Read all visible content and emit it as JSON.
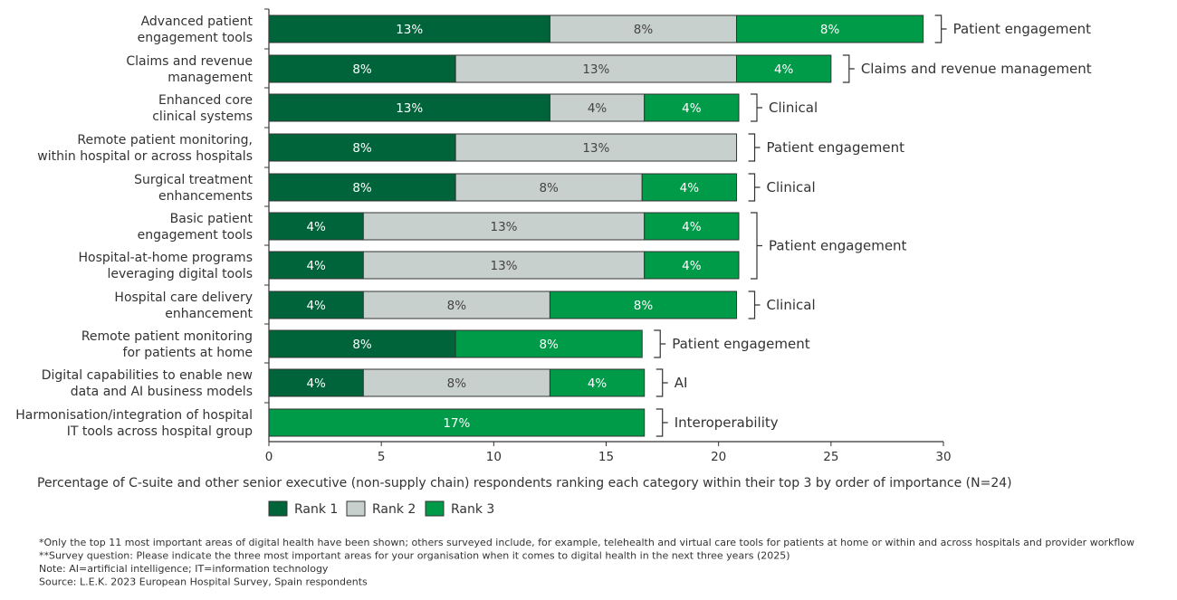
{
  "chart_data": {
    "type": "bar",
    "orientation": "horizontal",
    "stacked": true,
    "categories": [
      [
        "Advanced patient",
        "engagement tools"
      ],
      [
        "Claims and revenue",
        "management"
      ],
      [
        "Enhanced core",
        "clinical systems"
      ],
      [
        "Remote patient monitoring,",
        "within hospital or across hospitals"
      ],
      [
        "Surgical treatment",
        "enhancements"
      ],
      [
        "Basic patient",
        "engagement tools"
      ],
      [
        "Hospital-at-home programs",
        "leveraging digital tools"
      ],
      [
        "Hospital care delivery",
        "enhancement"
      ],
      [
        "Remote patient monitoring",
        "for patients at home"
      ],
      [
        "Digital capabilities to enable new",
        "data and AI business models"
      ],
      [
        "Harmonisation/integration of hospital",
        "IT tools across hospital group"
      ]
    ],
    "series": [
      {
        "name": "Rank 1",
        "color": "#00643A",
        "values": [
          12.5,
          8.3,
          12.5,
          8.3,
          8.3,
          4.2,
          4.2,
          4.2,
          8.3,
          4.2,
          0
        ],
        "labels": [
          "13%",
          "8%",
          "13%",
          "8%",
          "8%",
          "4%",
          "4%",
          "4%",
          "8%",
          "4%",
          ""
        ]
      },
      {
        "name": "Rank 2",
        "color": "#C8D0CD",
        "values": [
          8.3,
          12.5,
          4.2,
          12.5,
          8.3,
          12.5,
          12.5,
          8.3,
          0,
          8.3,
          0
        ],
        "labels": [
          "8%",
          "13%",
          "4%",
          "13%",
          "8%",
          "13%",
          "13%",
          "8%",
          "",
          "8%",
          ""
        ]
      },
      {
        "name": "Rank 3",
        "color": "#009B48",
        "values": [
          8.3,
          4.2,
          4.2,
          0,
          4.2,
          4.2,
          4.2,
          8.3,
          8.3,
          4.2,
          16.7
        ],
        "labels": [
          "8%",
          "4%",
          "4%",
          "",
          "4%",
          "4%",
          "4%",
          "8%",
          "8%",
          "4%",
          "17%"
        ]
      }
    ],
    "groups": [
      {
        "label": "Patient engagement",
        "rows": [
          0
        ]
      },
      {
        "label": "Claims and revenue management",
        "rows": [
          1
        ]
      },
      {
        "label": "Clinical",
        "rows": [
          2
        ]
      },
      {
        "label": "Patient engagement",
        "rows": [
          3
        ]
      },
      {
        "label": "Clinical",
        "rows": [
          4
        ]
      },
      {
        "label": "Patient engagement",
        "rows": [
          5,
          6
        ]
      },
      {
        "label": "Clinical",
        "rows": [
          7
        ]
      },
      {
        "label": "Patient engagement",
        "rows": [
          8
        ]
      },
      {
        "label": "AI",
        "rows": [
          9
        ]
      },
      {
        "label": "Interoperability",
        "rows": [
          10
        ]
      }
    ],
    "xlim": [
      0,
      30
    ],
    "xticks": [
      "0",
      "5",
      "10",
      "15",
      "20",
      "25",
      "30"
    ],
    "xlabel": "Percentage of C-suite and other senior executive (non-supply chain) respondents ranking each category within their top 3 by order of importance (N=24)",
    "legend_position": "bottom-left",
    "grid": false
  },
  "footnotes": [
    "*Only the top 11 most important areas of digital health have been shown; others surveyed include, for example, telehealth and virtual care tools for patients at home or within and across hospitals and provider workflow",
    "**Survey question: Please indicate the three most important areas for your organisation when it comes to digital health in the next three years (2025)",
    "Note: AI=artificial intelligence; IT=information technology",
    "Source: L.E.K. 2023 European Hospital Survey, Spain respondents"
  ]
}
